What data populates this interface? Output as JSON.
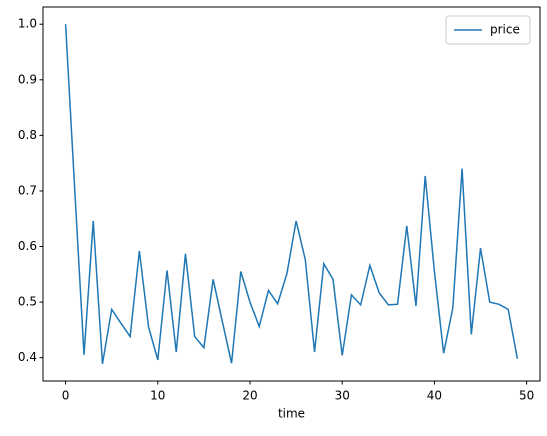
{
  "chart_data": {
    "type": "line",
    "xlabel": "time",
    "x": [
      0,
      1,
      2,
      3,
      4,
      5,
      6,
      7,
      8,
      9,
      10,
      11,
      12,
      13,
      14,
      15,
      16,
      17,
      18,
      19,
      20,
      21,
      22,
      23,
      24,
      25,
      26,
      27,
      28,
      29,
      30,
      31,
      32,
      33,
      34,
      35,
      36,
      37,
      38,
      39,
      40,
      41,
      42,
      43,
      44,
      45,
      46,
      47,
      48,
      49
    ],
    "series": [
      {
        "name": "price",
        "color": "#1f77b4",
        "values": [
          1.0,
          0.7,
          0.405,
          0.646,
          0.389,
          0.487,
          0.462,
          0.438,
          0.592,
          0.455,
          0.396,
          0.557,
          0.41,
          0.587,
          0.438,
          0.418,
          0.541,
          0.465,
          0.39,
          0.555,
          0.5,
          0.456,
          0.521,
          0.497,
          0.551,
          0.646,
          0.576,
          0.41,
          0.569,
          0.541,
          0.404,
          0.513,
          0.495,
          0.566,
          0.517,
          0.495,
          0.496,
          0.637,
          0.493,
          0.727,
          0.555,
          0.408,
          0.49,
          0.74,
          0.442,
          0.597,
          0.5,
          0.496,
          0.487,
          0.398
        ]
      }
    ],
    "xlim": [
      -2.45,
      51.45
    ],
    "xticks": [
      0,
      10,
      20,
      30,
      40,
      50
    ],
    "ylim": [
      0.358,
      1.031
    ],
    "yticks": [
      0.4,
      0.5,
      0.6,
      0.7,
      0.8,
      0.9,
      {
        "value": 1.0,
        "label": "1.0"
      }
    ],
    "grid": false,
    "legend": "upper right"
  }
}
